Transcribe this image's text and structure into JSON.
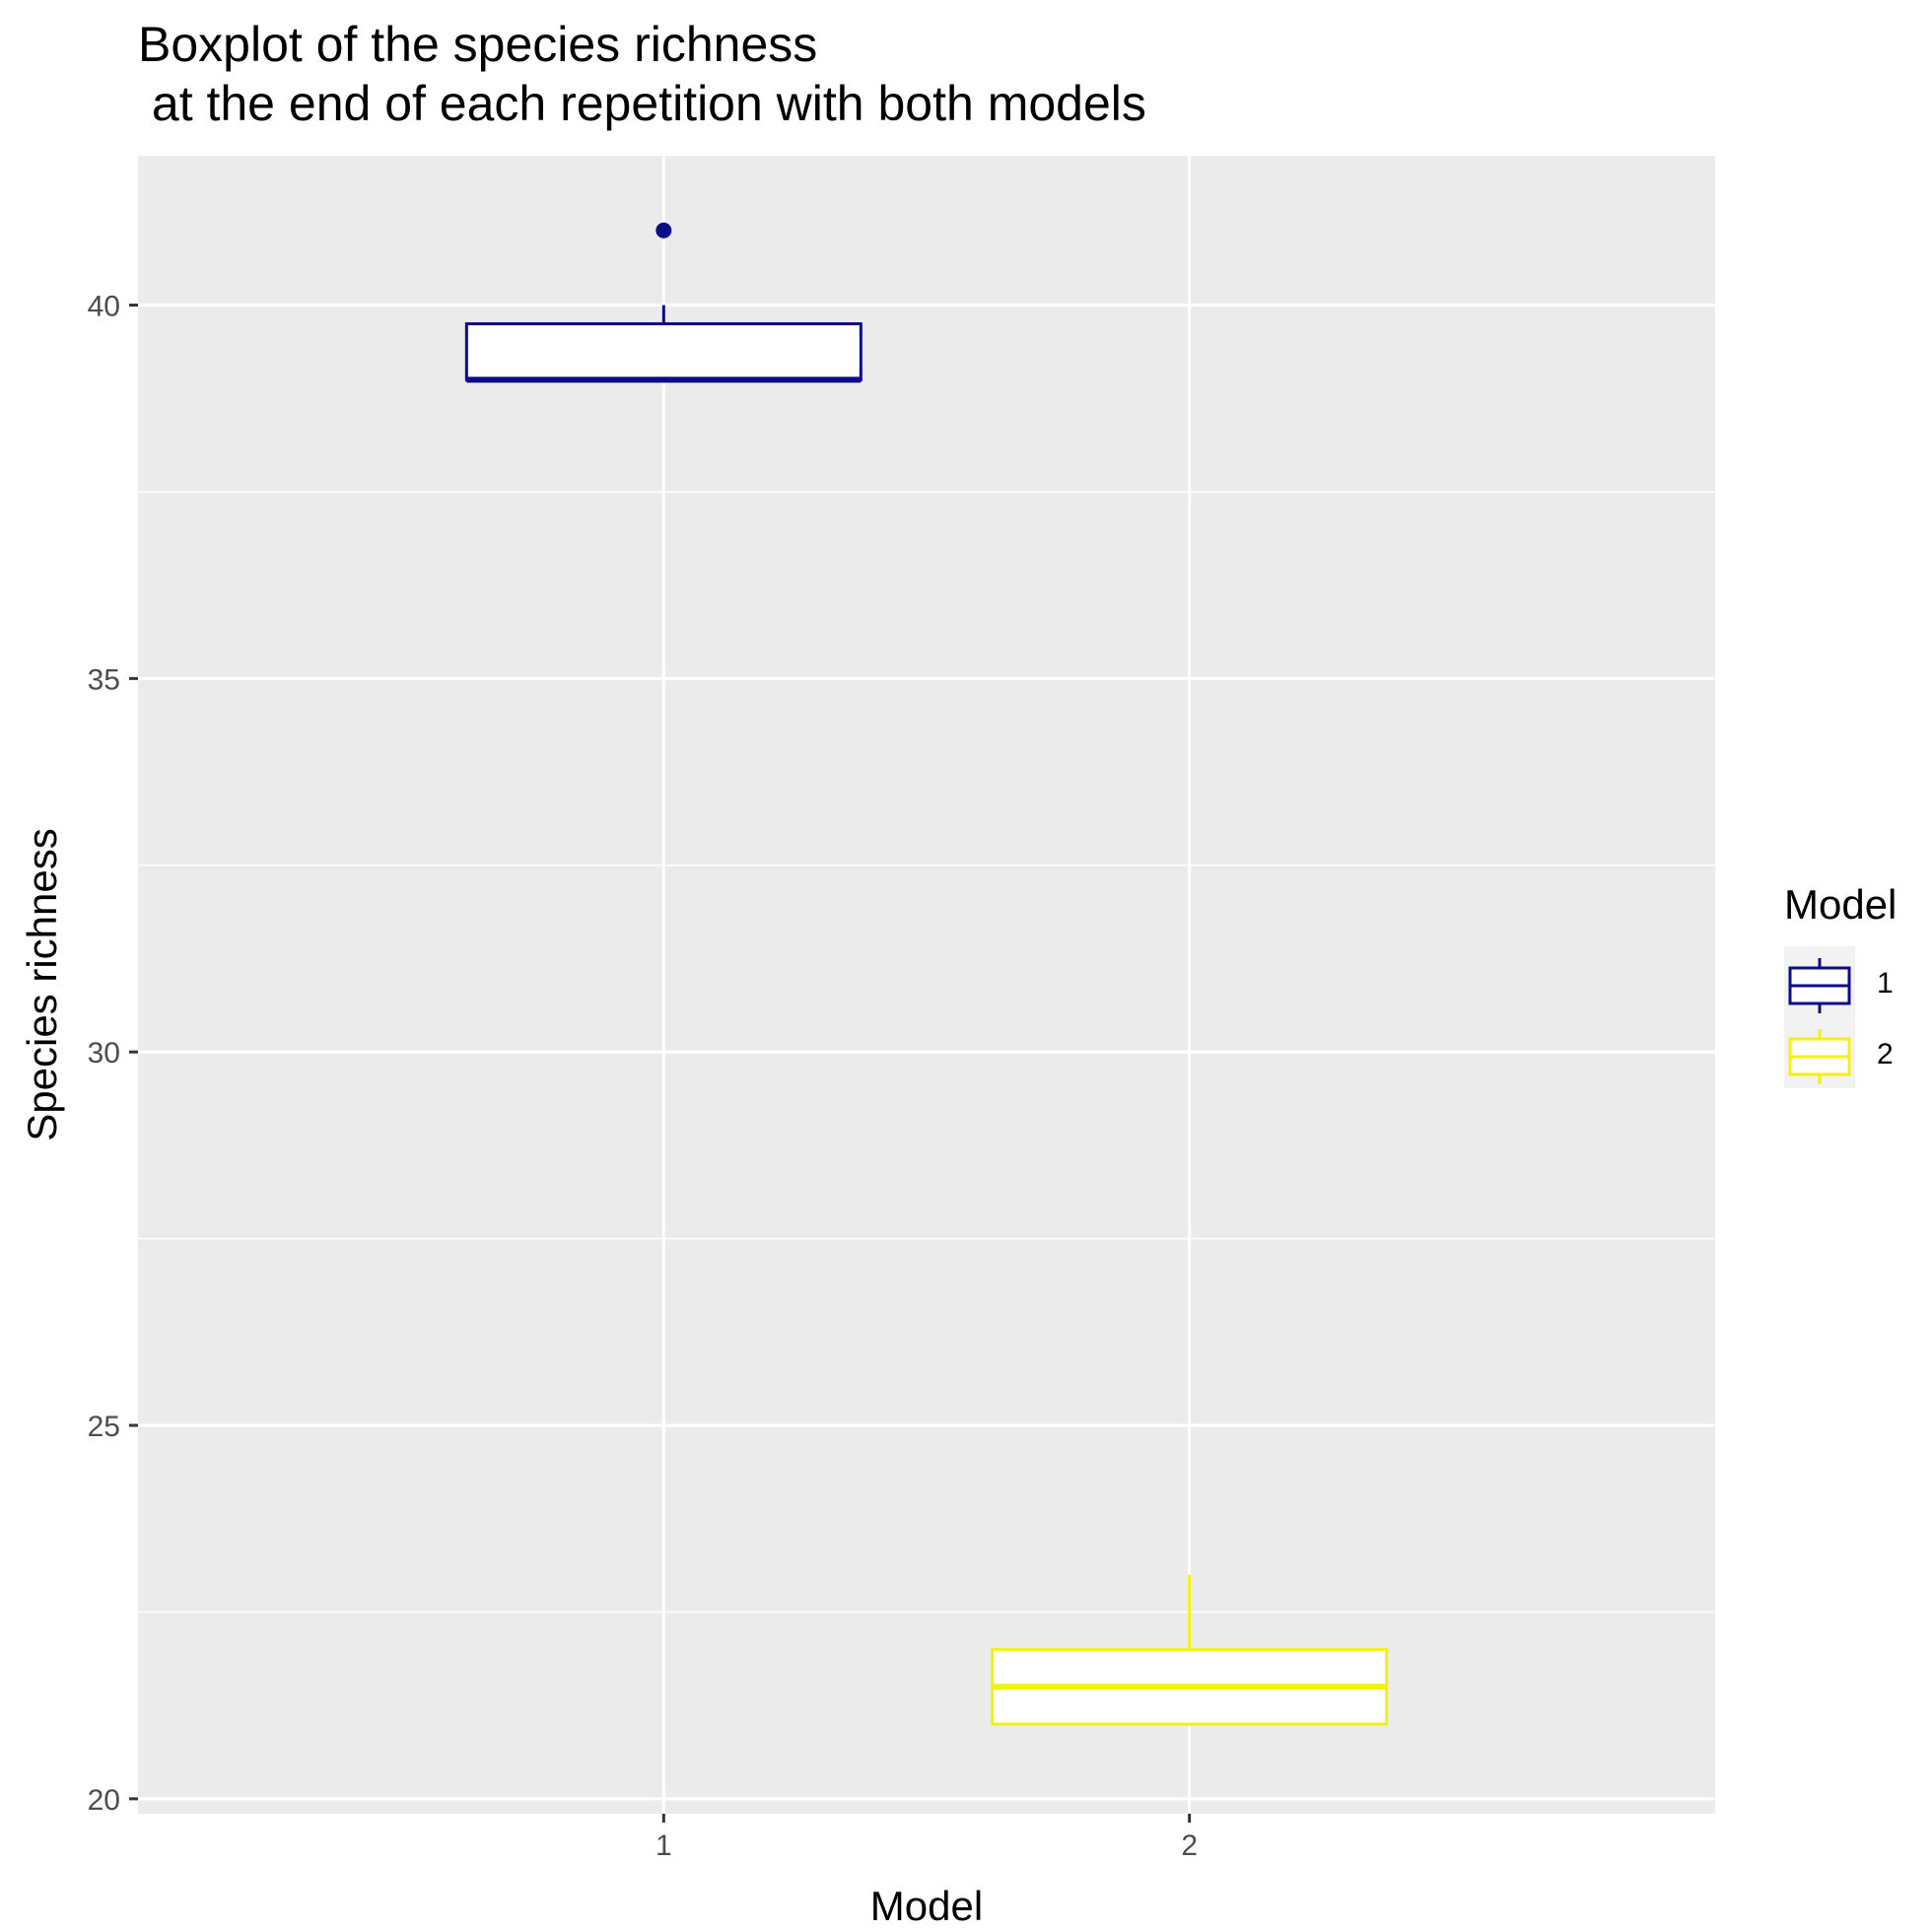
{
  "chart_data": {
    "type": "boxplot",
    "title_lines": [
      "Boxplot of the species richness",
      " at the end of each repetition with both models"
    ],
    "xlabel": "Model",
    "ylabel": "Species richness",
    "categories": [
      "1",
      "2"
    ],
    "ylim": [
      19.8,
      42
    ],
    "y_ticks": [
      20,
      25,
      30,
      35,
      40
    ],
    "y_minor_ticks": [
      22.5,
      27.5,
      32.5,
      37.5
    ],
    "grid": true,
    "legend": {
      "title": "Model",
      "placement": "right",
      "entries": [
        "1",
        "2"
      ]
    },
    "series": [
      {
        "category": "1",
        "color": "#0c0c8a",
        "fill": "#ffffff",
        "whisker_low": 39,
        "q1": 39,
        "median": 39,
        "q3": 39.75,
        "whisker_high": 40,
        "outliers": [
          41
        ]
      },
      {
        "category": "2",
        "color": "#f2f20c",
        "fill": "#ffffff",
        "whisker_low": 21,
        "q1": 21,
        "median": 21.5,
        "q3": 22,
        "whisker_high": 23,
        "outliers": []
      }
    ]
  },
  "colors": {
    "panel_background": "#ebebeb",
    "gridline": "#ffffff",
    "tick_mark": "#333333",
    "legend_key_background": "#f2f2f2"
  }
}
